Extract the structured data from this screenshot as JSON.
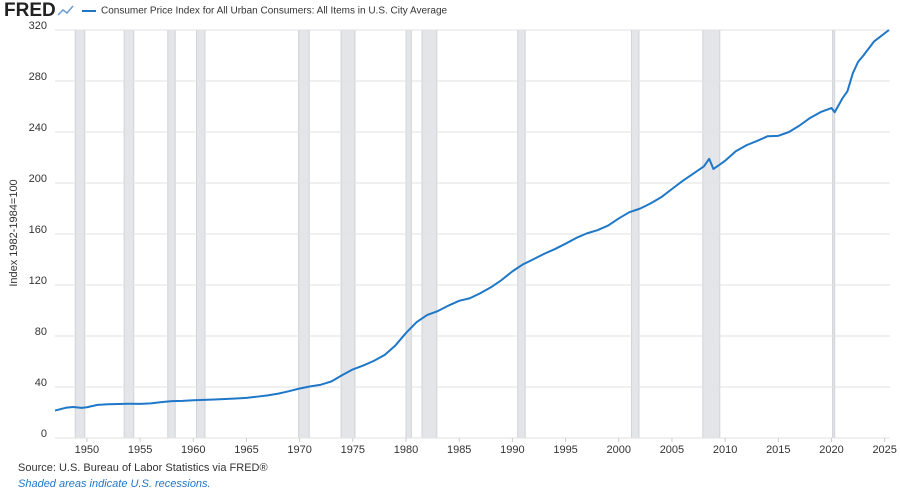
{
  "logo": "FRED",
  "chart_data": {
    "type": "line",
    "ylabel": "Index 1982-1984=100",
    "source": "Source: U.S. Bureau of Labor Statistics via FRED®",
    "note": "Shaded areas indicate U.S. recessions.",
    "x": [
      1947,
      1948,
      1948.7,
      1949.5,
      1950,
      1951,
      1952,
      1953,
      1954,
      1955,
      1956,
      1957,
      1958,
      1959,
      1960,
      1961,
      1962,
      1963,
      1964,
      1965,
      1966,
      1967,
      1968,
      1969,
      1970,
      1971,
      1972,
      1973,
      1974,
      1975,
      1976,
      1977,
      1978,
      1979,
      1980,
      1981,
      1982,
      1983,
      1984,
      1985,
      1986,
      1987,
      1988,
      1989,
      1990,
      1991,
      1992,
      1993,
      1994,
      1995,
      1996,
      1997,
      1998,
      1999,
      2000,
      2001,
      2002,
      2003,
      2004,
      2005,
      2006,
      2007,
      2008,
      2008.5,
      2008.9,
      2009.5,
      2010,
      2011,
      2012,
      2013,
      2014,
      2015,
      2016,
      2017,
      2018,
      2019,
      2020,
      2020.3,
      2021,
      2021.5,
      2022,
      2022.5,
      2023,
      2024,
      2025.4
    ],
    "series": [
      {
        "name": "Consumer Price Index for All Urban Consumers: All Items in U.S. City Average",
        "color": "#1f77c8",
        "values": [
          21.5,
          23.7,
          24.3,
          23.6,
          24.1,
          26.0,
          26.5,
          26.7,
          26.9,
          26.8,
          27.2,
          28.1,
          28.9,
          29.1,
          29.6,
          29.9,
          30.2,
          30.6,
          31.0,
          31.5,
          32.4,
          33.4,
          34.8,
          36.7,
          38.8,
          40.5,
          41.8,
          44.4,
          49.3,
          53.8,
          56.9,
          60.6,
          65.2,
          72.6,
          82.4,
          90.9,
          96.5,
          99.6,
          103.9,
          107.6,
          109.6,
          113.6,
          118.3,
          124.0,
          130.7,
          136.2,
          140.3,
          144.5,
          148.2,
          152.4,
          156.9,
          160.5,
          163.0,
          166.6,
          172.2,
          177.1,
          179.9,
          184.0,
          188.9,
          195.3,
          201.6,
          207.3,
          213.0,
          219.0,
          211.0,
          214.5,
          217.5,
          224.9,
          229.6,
          233.0,
          236.7,
          237.0,
          240.0,
          245.1,
          251.1,
          255.7,
          258.8,
          255.5,
          266.0,
          272.0,
          286.0,
          295.0,
          300.0,
          311.0,
          320.0
        ]
      }
    ],
    "recessions": [
      [
        1948.9,
        1949.8
      ],
      [
        1953.5,
        1954.4
      ],
      [
        1957.6,
        1958.3
      ],
      [
        1960.3,
        1961.1
      ],
      [
        1969.9,
        1970.9
      ],
      [
        1973.9,
        1975.2
      ],
      [
        1980.0,
        1980.5
      ],
      [
        1981.5,
        1982.9
      ],
      [
        1990.5,
        1991.2
      ],
      [
        2001.2,
        2001.9
      ],
      [
        2007.9,
        2009.5
      ],
      [
        2020.1,
        2020.3
      ]
    ],
    "xlim": [
      1947,
      2025.5
    ],
    "ylim": [
      0,
      320
    ],
    "xticks": [
      1950,
      1955,
      1960,
      1965,
      1970,
      1975,
      1980,
      1985,
      1990,
      1995,
      2000,
      2005,
      2010,
      2015,
      2020,
      2025
    ],
    "yticks": [
      0,
      40,
      80,
      120,
      160,
      200,
      240,
      280,
      320
    ],
    "grid": true
  }
}
